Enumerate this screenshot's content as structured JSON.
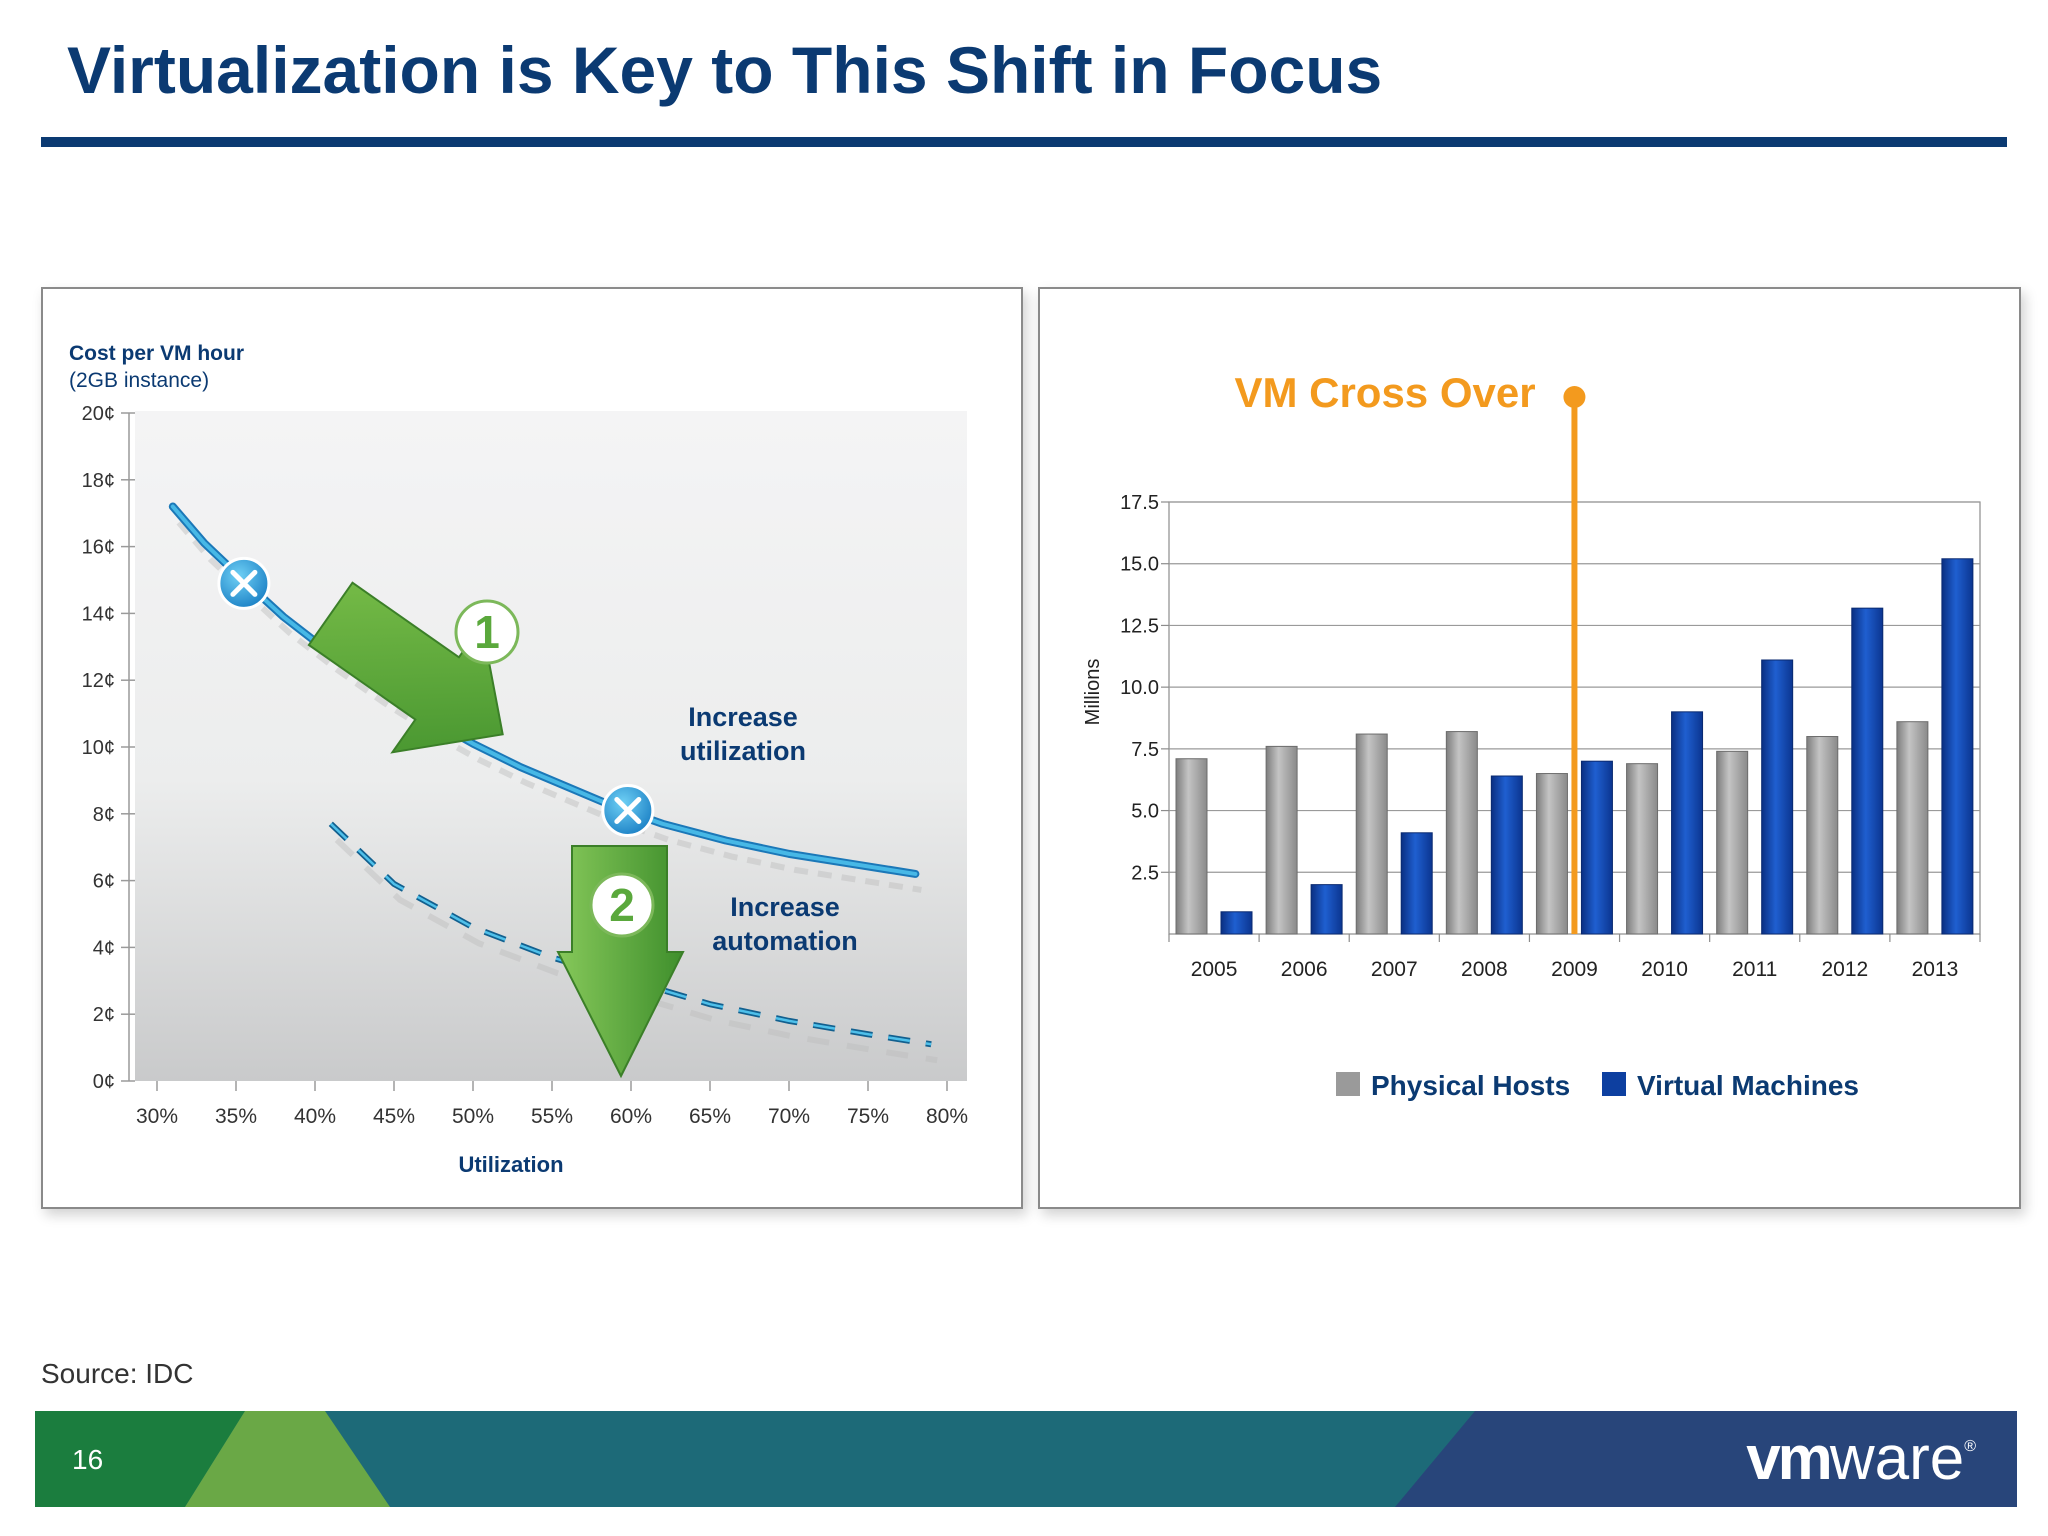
{
  "slide": {
    "title": "Virtualization is Key to This Shift in Focus",
    "source": "Source: IDC",
    "page_number": "16",
    "logo_text_bold": "vm",
    "logo_text": "ware",
    "logo_mark": "®"
  },
  "colors": {
    "title": "#0b3a72",
    "curve": "#2aa3d6",
    "arrow_green": "#5aa83c",
    "orange": "#f39a1e",
    "physical": "#9a9a9a",
    "virtual": "#0d3fa0",
    "footer_green": "#1b7d3e",
    "footer_teal": "#1d6a78",
    "footer_navy": "#28457a"
  },
  "chart_data": [
    {
      "type": "line",
      "title_line1": "Cost per VM hour",
      "title_line2": "(2GB instance)",
      "xlabel": "Utilization",
      "x_ticks": [
        "30%",
        "35%",
        "40%",
        "45%",
        "50%",
        "55%",
        "60%",
        "65%",
        "70%",
        "75%",
        "80%"
      ],
      "y_ticks": [
        "0¢",
        "2¢",
        "4¢",
        "6¢",
        "8¢",
        "10¢",
        "12¢",
        "14¢",
        "16¢",
        "18¢",
        "20¢"
      ],
      "xlim": [
        29,
        81
      ],
      "ylim": [
        0,
        20
      ],
      "series": [
        {
          "style": "solid",
          "x": [
            31,
            33,
            35,
            38,
            41,
            44,
            47,
            50,
            53,
            56,
            59,
            62,
            66,
            70,
            74,
            78
          ],
          "y": [
            17.2,
            16.1,
            15.2,
            13.9,
            12.8,
            11.8,
            10.9,
            10.1,
            9.4,
            8.8,
            8.2,
            7.7,
            7.2,
            6.8,
            6.5,
            6.2
          ]
        },
        {
          "style": "dashed",
          "x": [
            41,
            45,
            50,
            55,
            60,
            65,
            70,
            75,
            79
          ],
          "y": [
            7.7,
            5.9,
            4.6,
            3.7,
            3.0,
            2.3,
            1.8,
            1.4,
            1.1
          ]
        }
      ],
      "markers": [
        {
          "x": 35.5,
          "y": 14.9,
          "icon": "x-circle-icon"
        },
        {
          "x": 59.8,
          "y": 8.1,
          "icon": "x-circle-icon"
        }
      ],
      "annotations": [
        {
          "number": "1",
          "label_line1": "Increase",
          "label_line2": "utilization"
        },
        {
          "number": "2",
          "label_line1": "Increase",
          "label_line2": "automation"
        }
      ]
    },
    {
      "type": "bar",
      "ylabel": "Millions",
      "y_ticks": [
        "2.5",
        "5.0",
        "7.5",
        "10.0",
        "12.5",
        "15.0",
        "17.5"
      ],
      "ylim": [
        0,
        17.5
      ],
      "categories": [
        "2005",
        "2006",
        "2007",
        "2008",
        "2009",
        "2010",
        "2011",
        "2012",
        "2013"
      ],
      "series": [
        {
          "name": "Physical Hosts",
          "values": [
            7.1,
            7.6,
            8.1,
            8.2,
            6.5,
            6.9,
            7.4,
            8.0,
            8.6
          ]
        },
        {
          "name": "Virtual Machines",
          "values": [
            0.9,
            2.0,
            4.1,
            6.4,
            7.0,
            9.0,
            11.1,
            13.2,
            15.2
          ]
        }
      ],
      "annotation": {
        "label": "VM Cross Over",
        "between": [
          "2009",
          "2009"
        ]
      },
      "legend_position": "bottom"
    }
  ]
}
